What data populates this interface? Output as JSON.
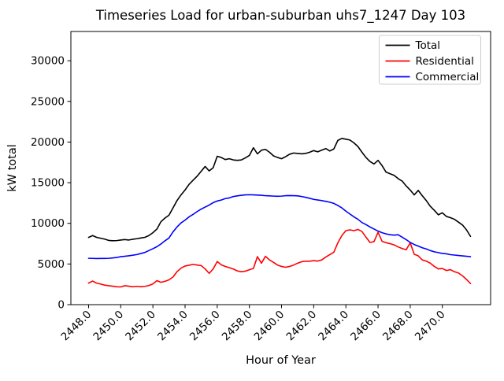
{
  "figure": {
    "title": "Timeseries Load for urban-suburban uhs7_1247  Day 103",
    "background": "#ffffff"
  },
  "chart_data": {
    "type": "line",
    "title": "Timeseries Load for urban-suburban uhs7_1247  Day 103",
    "xlabel": "Hour of Year",
    "ylabel": "kW total",
    "xlim": [
      2446.9,
      2473.0
    ],
    "ylim": [
      0,
      33600
    ],
    "grid": false,
    "legend_position": "upper right",
    "xtick_labels": [
      "2448.0",
      "2450.0",
      "2452.0",
      "2454.0",
      "2456.0",
      "2458.0",
      "2460.0",
      "2462.0",
      "2464.0",
      "2466.0",
      "2468.0",
      "2470.0"
    ],
    "xtick_values": [
      2448,
      2450,
      2452,
      2454,
      2456,
      2458,
      2460,
      2462,
      2464,
      2466,
      2468,
      2470
    ],
    "ytick_labels": [
      "0",
      "5000",
      "10000",
      "15000",
      "20000",
      "25000",
      "30000"
    ],
    "ytick_values": [
      0,
      5000,
      10000,
      15000,
      20000,
      25000,
      30000
    ],
    "x_start": 2448.0,
    "x_step": 0.25,
    "x": [
      2448.0,
      2448.25,
      2448.5,
      2448.75,
      2449.0,
      2449.25,
      2449.5,
      2449.75,
      2450.0,
      2450.25,
      2450.5,
      2450.75,
      2451.0,
      2451.25,
      2451.5,
      2451.75,
      2452.0,
      2452.25,
      2452.5,
      2452.75,
      2453.0,
      2453.25,
      2453.5,
      2453.75,
      2454.0,
      2454.25,
      2454.5,
      2454.75,
      2455.0,
      2455.25,
      2455.5,
      2455.75,
      2456.0,
      2456.25,
      2456.5,
      2456.75,
      2457.0,
      2457.25,
      2457.5,
      2457.75,
      2458.0,
      2458.25,
      2458.5,
      2458.75,
      2459.0,
      2459.25,
      2459.5,
      2459.75,
      2460.0,
      2460.25,
      2460.5,
      2460.75,
      2461.0,
      2461.25,
      2461.5,
      2461.75,
      2462.0,
      2462.25,
      2462.5,
      2462.75,
      2463.0,
      2463.25,
      2463.5,
      2463.75,
      2464.0,
      2464.25,
      2464.5,
      2464.75,
      2465.0,
      2465.25,
      2465.5,
      2465.75,
      2466.0,
      2466.25,
      2466.5,
      2466.75,
      2467.0,
      2467.25,
      2467.5,
      2467.75,
      2468.0,
      2468.25,
      2468.5,
      2468.75,
      2469.0,
      2469.25,
      2469.5,
      2469.75,
      2470.0,
      2470.25,
      2470.5,
      2470.75,
      2471.0,
      2471.25,
      2471.5,
      2471.75
    ],
    "series": [
      {
        "name": "Total",
        "color": "#000000",
        "values": [
          8270,
          8500,
          8280,
          8170,
          8060,
          7900,
          7860,
          7880,
          7950,
          8010,
          7950,
          8040,
          8110,
          8200,
          8280,
          8500,
          8850,
          9300,
          10200,
          10650,
          11000,
          11900,
          12800,
          13500,
          14100,
          14800,
          15300,
          15800,
          16400,
          17000,
          16450,
          16850,
          18250,
          18100,
          17850,
          17950,
          17800,
          17750,
          17800,
          18050,
          18350,
          19300,
          18550,
          19000,
          19100,
          18750,
          18300,
          18100,
          17950,
          18200,
          18500,
          18650,
          18600,
          18550,
          18600,
          18750,
          18950,
          18800,
          19000,
          19200,
          18900,
          19150,
          20200,
          20450,
          20350,
          20250,
          19900,
          19450,
          18750,
          18100,
          17600,
          17300,
          17750,
          17100,
          16300,
          16100,
          15900,
          15500,
          15200,
          14600,
          14100,
          13500,
          14050,
          13400,
          12800,
          12100,
          11600,
          11050,
          11300,
          10850,
          10700,
          10500,
          10150,
          9800,
          9200,
          8400
        ]
      },
      {
        "name": "Residential",
        "color": "#ff0000",
        "values": [
          2650,
          2900,
          2650,
          2530,
          2400,
          2330,
          2270,
          2200,
          2180,
          2330,
          2270,
          2200,
          2250,
          2200,
          2250,
          2350,
          2550,
          2950,
          2750,
          2870,
          3050,
          3400,
          4050,
          4500,
          4750,
          4850,
          4950,
          4870,
          4800,
          4400,
          3850,
          4400,
          5300,
          4900,
          4700,
          4550,
          4380,
          4150,
          4050,
          4120,
          4300,
          4450,
          5900,
          5100,
          5950,
          5500,
          5200,
          4870,
          4700,
          4600,
          4700,
          4870,
          5100,
          5280,
          5350,
          5340,
          5420,
          5360,
          5500,
          5850,
          6150,
          6450,
          7600,
          8500,
          9100,
          9200,
          9100,
          9250,
          9000,
          8300,
          7650,
          7750,
          8900,
          7800,
          7620,
          7500,
          7350,
          7100,
          6900,
          6750,
          7600,
          6200,
          6000,
          5500,
          5350,
          5100,
          4700,
          4400,
          4450,
          4200,
          4300,
          4050,
          3900,
          3550,
          3100,
          2600
        ]
      },
      {
        "name": "Commercial",
        "color": "#0000ff",
        "values": [
          5700,
          5690,
          5670,
          5680,
          5680,
          5700,
          5740,
          5800,
          5900,
          5950,
          6010,
          6080,
          6160,
          6290,
          6420,
          6650,
          6880,
          7130,
          7460,
          7850,
          8200,
          8950,
          9550,
          10050,
          10400,
          10800,
          11100,
          11450,
          11750,
          12000,
          12250,
          12550,
          12750,
          12870,
          13050,
          13130,
          13300,
          13380,
          13450,
          13500,
          13520,
          13500,
          13480,
          13450,
          13400,
          13380,
          13350,
          13330,
          13350,
          13400,
          13420,
          13400,
          13380,
          13300,
          13200,
          13080,
          12950,
          12870,
          12800,
          12700,
          12600,
          12450,
          12200,
          11900,
          11500,
          11150,
          10800,
          10500,
          10100,
          9850,
          9550,
          9300,
          9050,
          8850,
          8700,
          8600,
          8550,
          8600,
          8300,
          8000,
          7650,
          7400,
          7200,
          7000,
          6850,
          6650,
          6500,
          6400,
          6300,
          6250,
          6150,
          6100,
          6050,
          6000,
          5950,
          5900
        ]
      }
    ],
    "legend": {
      "entries": [
        {
          "label": "Total",
          "color": "#000000"
        },
        {
          "label": "Residential",
          "color": "#ff0000"
        },
        {
          "label": "Commercial",
          "color": "#0000ff"
        }
      ]
    }
  }
}
